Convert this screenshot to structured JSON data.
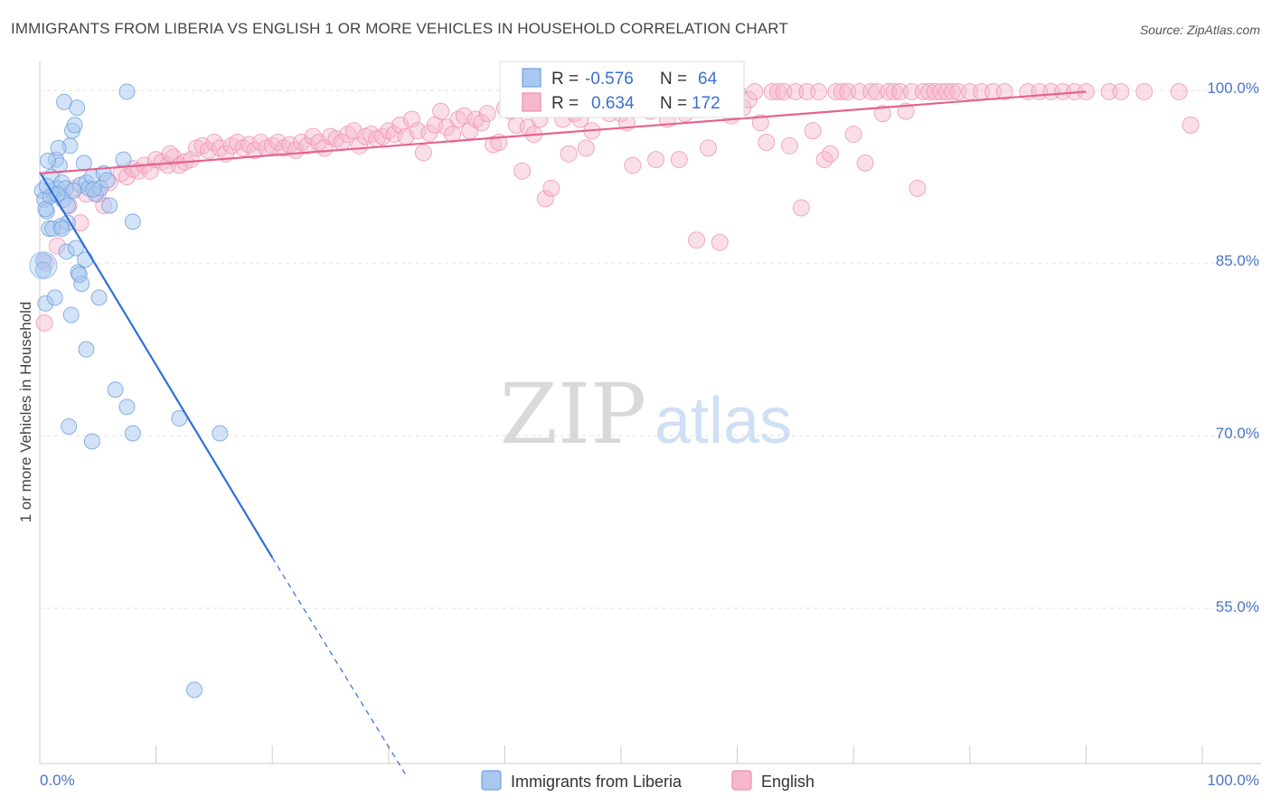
{
  "title": "IMMIGRANTS FROM LIBERIA VS ENGLISH 1 OR MORE VEHICLES IN HOUSEHOLD CORRELATION CHART",
  "source": "Source: ZipAtlas.com",
  "watermark": {
    "zip": "ZIP",
    "atlas": "atlas"
  },
  "colors": {
    "blue_fill": "#a8c8f0",
    "blue_stroke": "#6d9fe0",
    "blue_line": "#2f6fd6",
    "pink_fill": "#f6b8cc",
    "pink_stroke": "#ec8fae",
    "pink_line": "#e4638f",
    "axis_text": "#4a74c9",
    "grid": "#e3e3e3"
  },
  "legend": {
    "series": [
      {
        "r_label": "R =",
        "r_value": "-0.576",
        "n_label": "N =",
        "n_value": "64"
      },
      {
        "r_label": "R =",
        "r_value": "0.634",
        "n_label": "N =",
        "n_value": "172"
      }
    ]
  },
  "bottom_legend": [
    "Immigrants from Liberia",
    "English"
  ],
  "chart_data": {
    "type": "scatter",
    "title": "IMMIGRANTS FROM LIBERIA VS ENGLISH 1 OR MORE VEHICLES IN HOUSEHOLD CORRELATION CHART",
    "xlabel": "",
    "ylabel": "1 or more Vehicles in Household",
    "xlim": [
      0,
      100
    ],
    "ylim": [
      41.5,
      103
    ],
    "x_tick_labels": [
      "0.0%",
      "100.0%"
    ],
    "y_ticks": [
      100,
      85,
      70,
      55
    ],
    "y_tick_labels": [
      "100.0%",
      "85.0%",
      "70.0%",
      "55.0%"
    ],
    "grid": true,
    "series": [
      {
        "name": "Immigrants from Liberia",
        "r": -0.576,
        "n": 64,
        "trend": {
          "x0": 0,
          "y0": 92.9,
          "x1": 20,
          "y1": 59.4,
          "dash_x1": 31.5,
          "dash_y1": 40.5
        },
        "points": [
          [
            0.2,
            91.3
          ],
          [
            0.4,
            90.5
          ],
          [
            0.6,
            89.5
          ],
          [
            0.3,
            85.2
          ],
          [
            0.5,
            81.5
          ],
          [
            0.8,
            88.0
          ],
          [
            1.0,
            92.5
          ],
          [
            1.2,
            91.0
          ],
          [
            1.4,
            94.0
          ],
          [
            1.5,
            91.5
          ],
          [
            1.7,
            93.5
          ],
          [
            1.9,
            92.0
          ],
          [
            2.0,
            90.5
          ],
          [
            2.2,
            91.5
          ],
          [
            2.4,
            88.5
          ],
          [
            2.6,
            95.2
          ],
          [
            2.8,
            96.5
          ],
          [
            3.0,
            97.0
          ],
          [
            3.2,
            98.5
          ],
          [
            3.5,
            91.8
          ],
          [
            3.8,
            93.7
          ],
          [
            4.0,
            92.0
          ],
          [
            4.2,
            91.5
          ],
          [
            4.5,
            92.5
          ],
          [
            4.8,
            91.0
          ],
          [
            5.2,
            91.5
          ],
          [
            5.5,
            92.8
          ],
          [
            6.0,
            90.0
          ],
          [
            7.2,
            94.0
          ],
          [
            7.5,
            99.9
          ],
          [
            8.0,
            88.6
          ],
          [
            1.8,
            88.2
          ],
          [
            2.3,
            86.0
          ],
          [
            3.1,
            86.3
          ],
          [
            3.3,
            84.2
          ],
          [
            3.6,
            83.2
          ],
          [
            3.9,
            85.3
          ],
          [
            5.1,
            82.0
          ],
          [
            2.7,
            80.5
          ],
          [
            1.3,
            82.0
          ],
          [
            4.0,
            77.5
          ],
          [
            6.5,
            74.0
          ],
          [
            7.5,
            72.5
          ],
          [
            12.0,
            71.5
          ],
          [
            15.5,
            70.2
          ],
          [
            8.0,
            70.2
          ],
          [
            2.5,
            70.8
          ],
          [
            4.5,
            69.5
          ],
          [
            13.3,
            47.9
          ],
          [
            1.1,
            88.0
          ],
          [
            0.9,
            90.8
          ],
          [
            0.7,
            93.9
          ],
          [
            2.1,
            99.0
          ],
          [
            5.8,
            92.2
          ],
          [
            1.6,
            95.0
          ],
          [
            0.5,
            89.7
          ],
          [
            3.4,
            84.0
          ],
          [
            2.9,
            91.3
          ],
          [
            1.9,
            88.0
          ],
          [
            0.6,
            91.7
          ],
          [
            4.6,
            91.4
          ],
          [
            0.3,
            84.4
          ],
          [
            1.5,
            91.0
          ],
          [
            2.4,
            90.0
          ]
        ]
      },
      {
        "name": "English",
        "r": 0.634,
        "n": 172,
        "trend": {
          "x0": 0,
          "y0": 92.8,
          "x1": 90,
          "y1": 99.9
        },
        "points": [
          [
            0.5,
            85.0
          ],
          [
            0.4,
            79.8
          ],
          [
            1.5,
            86.5
          ],
          [
            2.5,
            90.0
          ],
          [
            3.0,
            91.5
          ],
          [
            3.5,
            88.5
          ],
          [
            4.0,
            91.0
          ],
          [
            5.0,
            91.0
          ],
          [
            5.5,
            90.0
          ],
          [
            6.0,
            92.0
          ],
          [
            7.0,
            92.8
          ],
          [
            7.5,
            92.5
          ],
          [
            8.0,
            93.2
          ],
          [
            8.5,
            93.0
          ],
          [
            9.0,
            93.5
          ],
          [
            9.5,
            93.0
          ],
          [
            10.0,
            94.0
          ],
          [
            10.5,
            93.8
          ],
          [
            11.0,
            93.5
          ],
          [
            11.5,
            94.2
          ],
          [
            12.0,
            93.5
          ],
          [
            11.2,
            94.5
          ],
          [
            12.5,
            93.8
          ],
          [
            13.0,
            94.0
          ],
          [
            13.5,
            95.0
          ],
          [
            14.0,
            95.2
          ],
          [
            14.5,
            94.8
          ],
          [
            15.0,
            95.5
          ],
          [
            15.5,
            95.0
          ],
          [
            16.0,
            94.5
          ],
          [
            16.5,
            95.2
          ],
          [
            17.0,
            95.5
          ],
          [
            17.5,
            95.0
          ],
          [
            18.0,
            95.3
          ],
          [
            18.5,
            94.8
          ],
          [
            19.0,
            95.5
          ],
          [
            19.5,
            95.0
          ],
          [
            20.0,
            95.2
          ],
          [
            20.5,
            95.5
          ],
          [
            21.0,
            95.0
          ],
          [
            21.5,
            95.3
          ],
          [
            22.0,
            94.8
          ],
          [
            22.5,
            95.5
          ],
          [
            23.0,
            95.2
          ],
          [
            23.5,
            96.0
          ],
          [
            24.0,
            95.5
          ],
          [
            24.5,
            95.0
          ],
          [
            25.0,
            96.0
          ],
          [
            25.5,
            95.8
          ],
          [
            26.0,
            95.5
          ],
          [
            26.5,
            96.2
          ],
          [
            27.0,
            96.5
          ],
          [
            27.5,
            95.2
          ],
          [
            28.0,
            96.0
          ],
          [
            28.5,
            96.2
          ],
          [
            29.0,
            95.8
          ],
          [
            29.5,
            96.0
          ],
          [
            30.0,
            96.5
          ],
          [
            30.5,
            96.2
          ],
          [
            31.0,
            97.0
          ],
          [
            31.5,
            96.0
          ],
          [
            32.0,
            97.5
          ],
          [
            32.5,
            96.5
          ],
          [
            33.0,
            94.6
          ],
          [
            33.5,
            96.3
          ],
          [
            34.0,
            97.0
          ],
          [
            34.5,
            98.2
          ],
          [
            35.0,
            96.8
          ],
          [
            35.5,
            96.2
          ],
          [
            36.0,
            97.5
          ],
          [
            36.5,
            97.8
          ],
          [
            37.0,
            96.5
          ],
          [
            37.5,
            97.5
          ],
          [
            38.0,
            97.2
          ],
          [
            38.5,
            98.0
          ],
          [
            39.0,
            95.3
          ],
          [
            39.5,
            95.5
          ],
          [
            40.0,
            98.5
          ],
          [
            40.5,
            98.2
          ],
          [
            41.0,
            97.0
          ],
          [
            41.5,
            93.0
          ],
          [
            42.0,
            96.8
          ],
          [
            42.5,
            96.2
          ],
          [
            43.0,
            97.5
          ],
          [
            43.5,
            90.6
          ],
          [
            44.0,
            91.5
          ],
          [
            44.5,
            98.6
          ],
          [
            45.0,
            97.5
          ],
          [
            45.5,
            94.5
          ],
          [
            46.0,
            98.0
          ],
          [
            46.5,
            97.5
          ],
          [
            47.0,
            95.0
          ],
          [
            47.5,
            96.5
          ],
          [
            48.0,
            99.9
          ],
          [
            48.5,
            99.8
          ],
          [
            49.0,
            98.0
          ],
          [
            49.5,
            98.8
          ],
          [
            50.0,
            98.0
          ],
          [
            50.5,
            97.2
          ],
          [
            51.0,
            93.5
          ],
          [
            51.5,
            99.5
          ],
          [
            52.0,
            99.8
          ],
          [
            52.5,
            98.2
          ],
          [
            53.0,
            94.0
          ],
          [
            53.5,
            99.9
          ],
          [
            54.0,
            97.5
          ],
          [
            54.5,
            98.5
          ],
          [
            55.0,
            94.0
          ],
          [
            55.5,
            98.0
          ],
          [
            56.0,
            99.9
          ],
          [
            56.5,
            87.0
          ],
          [
            57.0,
            99.0
          ],
          [
            57.5,
            95.0
          ],
          [
            58.0,
            99.9
          ],
          [
            58.5,
            86.8
          ],
          [
            59.0,
            99.5
          ],
          [
            59.5,
            97.8
          ],
          [
            60.0,
            99.9
          ],
          [
            60.5,
            98.5
          ],
          [
            61.0,
            99.2
          ],
          [
            61.5,
            99.9
          ],
          [
            62.0,
            97.2
          ],
          [
            62.5,
            95.5
          ],
          [
            63.0,
            99.9
          ],
          [
            63.5,
            99.9
          ],
          [
            64.0,
            99.9
          ],
          [
            64.5,
            95.2
          ],
          [
            65.0,
            99.9
          ],
          [
            65.5,
            89.8
          ],
          [
            66.0,
            99.9
          ],
          [
            66.5,
            96.5
          ],
          [
            67.0,
            99.9
          ],
          [
            67.5,
            94.0
          ],
          [
            68.0,
            94.5
          ],
          [
            68.5,
            99.9
          ],
          [
            69.0,
            99.9
          ],
          [
            69.5,
            99.9
          ],
          [
            70.0,
            96.2
          ],
          [
            70.5,
            99.9
          ],
          [
            71.0,
            93.7
          ],
          [
            71.5,
            99.9
          ],
          [
            72.0,
            99.9
          ],
          [
            72.5,
            98.0
          ],
          [
            73.0,
            99.9
          ],
          [
            73.5,
            99.9
          ],
          [
            74.0,
            99.9
          ],
          [
            74.5,
            98.2
          ],
          [
            75.0,
            99.9
          ],
          [
            75.5,
            91.5
          ],
          [
            76.0,
            99.9
          ],
          [
            76.5,
            99.9
          ],
          [
            77.0,
            99.9
          ],
          [
            77.5,
            99.9
          ],
          [
            78.0,
            99.9
          ],
          [
            78.5,
            99.9
          ],
          [
            79.0,
            99.9
          ],
          [
            80.0,
            99.9
          ],
          [
            81.0,
            99.9
          ],
          [
            82.0,
            99.9
          ],
          [
            83.0,
            99.9
          ],
          [
            85.0,
            99.9
          ],
          [
            86.0,
            99.9
          ],
          [
            87.0,
            99.9
          ],
          [
            88.0,
            99.9
          ],
          [
            89.0,
            99.9
          ],
          [
            90.0,
            99.9
          ],
          [
            92.0,
            99.9
          ],
          [
            93.0,
            99.9
          ],
          [
            95.0,
            99.9
          ],
          [
            98.0,
            99.9
          ],
          [
            99.0,
            97.0
          ]
        ]
      }
    ]
  }
}
